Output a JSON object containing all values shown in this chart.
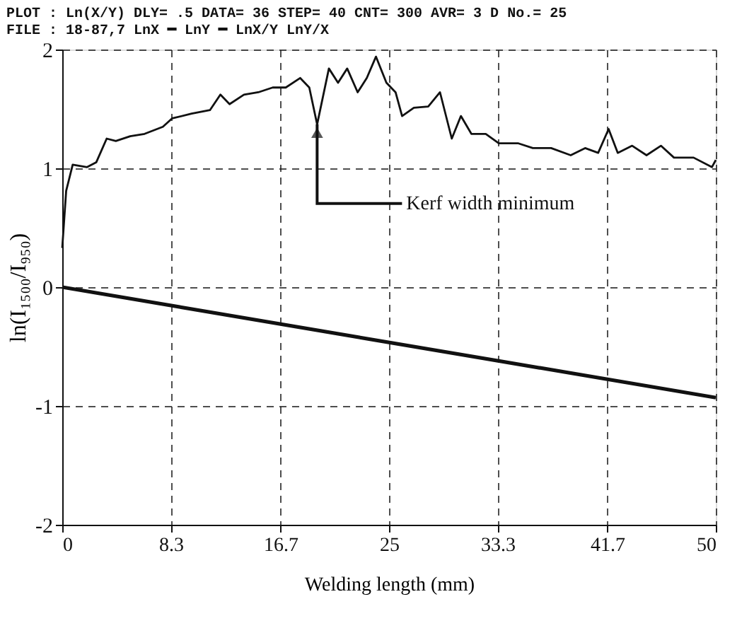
{
  "chart_data": {
    "type": "line",
    "xlabel": "Welding length (mm)",
    "ylabel": "ln(I₁₅₀₀/I₉₅₀)",
    "xlim": [
      0,
      50
    ],
    "ylim": [
      -2,
      2
    ],
    "xticks": [
      0,
      8.3,
      16.7,
      25,
      33.3,
      41.7,
      50
    ],
    "yticks": [
      -2,
      -1,
      0,
      1,
      2
    ],
    "grid": true,
    "line_style": "solid",
    "marker": "none",
    "annotations": [
      "PLOT : Ln(X/Y)  DLY= .5   DATA= 36  STEP= 40  CNT= 300  AVR= 3   D No.= 25",
      "FILE : 18-87,7       LnX       ━ LnY        ━ LnX/Y        LnY/X",
      {
        "text": "Kerf width minimum",
        "x": 19.5,
        "y": 1.37
      }
    ],
    "series": [
      {
        "color": "#111111",
        "x": [
          0,
          0.3,
          0.8,
          1.9,
          2.6,
          3.4,
          4.1,
          5.2,
          6.3,
          7.7,
          8.4,
          9.9,
          11.3,
          12.1,
          12.8,
          13.9,
          15,
          16.1,
          17.1,
          18.2,
          18.9,
          19.5,
          20.4,
          21.1,
          21.8,
          22.6,
          23.3,
          24,
          24.8,
          25.5,
          26,
          26.9,
          28,
          28.9,
          29.8,
          30.5,
          31.3,
          32.4,
          33.4,
          34.9,
          36,
          37.4,
          38.9,
          40,
          41,
          41.8,
          42.5,
          43.6,
          44.7,
          45.8,
          46.8,
          48.3,
          49.7,
          50
        ],
        "values": [
          0.33,
          0.81,
          1.03,
          1.01,
          1.05,
          1.25,
          1.23,
          1.27,
          1.29,
          1.35,
          1.42,
          1.46,
          1.49,
          1.62,
          1.54,
          1.62,
          1.64,
          1.68,
          1.68,
          1.76,
          1.68,
          1.37,
          1.84,
          1.72,
          1.84,
          1.64,
          1.76,
          1.94,
          1.72,
          1.64,
          1.44,
          1.51,
          1.52,
          1.64,
          1.25,
          1.44,
          1.29,
          1.29,
          1.21,
          1.21,
          1.17,
          1.17,
          1.11,
          1.17,
          1.13,
          1.33,
          1.13,
          1.19,
          1.11,
          1.19,
          1.09,
          1.09,
          1.01,
          1.07
        ]
      },
      {
        "color": "#111111",
        "x": [
          0,
          50
        ],
        "values": [
          0,
          -0.93
        ]
      }
    ]
  }
}
